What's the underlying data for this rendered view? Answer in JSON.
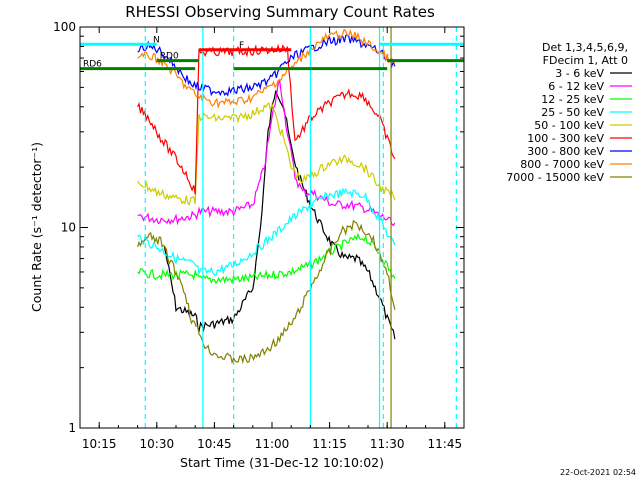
{
  "chart_data": {
    "type": "line",
    "title": "RHESSI Observing Summary Count Rates",
    "xlabel": "Start Time (31-Dec-12 10:10:02)",
    "ylabel": "Count Rate (s⁻¹ detector⁻¹)",
    "yscale": "log",
    "xlim": [
      "10:10",
      "11:50"
    ],
    "ylim": [
      1,
      100
    ],
    "x_ticks": [
      "10:15",
      "10:30",
      "10:45",
      "11:00",
      "11:15",
      "11:30",
      "11:45"
    ],
    "y_ticks": [
      "1",
      "10",
      "100"
    ],
    "legend_placement": "right",
    "legend_header": [
      "Det 1,3,4,5,6,9,",
      "FDecim 1, Att 0"
    ],
    "series": [
      {
        "name": "3 - 6 keV",
        "color": "#000000",
        "points": [
          [
            "10:32",
            8
          ],
          [
            "10:35",
            4
          ],
          [
            "10:40",
            3.6
          ],
          [
            "10:41",
            3.2
          ],
          [
            "10:45",
            3.3
          ],
          [
            "10:50",
            3.5
          ],
          [
            "10:55",
            5
          ],
          [
            "10:57",
            10
          ],
          [
            "10:59",
            30
          ],
          [
            "11:01",
            50
          ],
          [
            "11:03",
            40
          ],
          [
            "11:05",
            25
          ],
          [
            "11:07",
            18
          ],
          [
            "11:10",
            13
          ],
          [
            "11:13",
            10
          ],
          [
            "11:16",
            8
          ],
          [
            "11:19",
            7
          ],
          [
            "11:22",
            7
          ],
          [
            "11:25",
            6
          ],
          [
            "11:28",
            4.5
          ],
          [
            "11:30",
            3.5
          ],
          [
            "11:32",
            2.8
          ]
        ]
      },
      {
        "name": "6 - 12 keV",
        "color": "#ff00ff",
        "points": [
          [
            "10:25",
            11.5
          ],
          [
            "10:30",
            11
          ],
          [
            "10:35",
            11
          ],
          [
            "10:40",
            11.5
          ],
          [
            "10:41",
            12
          ],
          [
            "10:45",
            12
          ],
          [
            "10:50",
            12
          ],
          [
            "10:55",
            13
          ],
          [
            "10:58",
            20
          ],
          [
            "11:00",
            35
          ],
          [
            "11:02",
            55
          ],
          [
            "11:04",
            30
          ],
          [
            "11:06",
            18
          ],
          [
            "11:08",
            15
          ],
          [
            "11:10",
            15
          ],
          [
            "11:13",
            14
          ],
          [
            "11:16",
            13
          ],
          [
            "11:20",
            13
          ],
          [
            "11:24",
            12.5
          ],
          [
            "11:28",
            11.5
          ],
          [
            "11:30",
            11
          ],
          [
            "11:32",
            10
          ]
        ]
      },
      {
        "name": "12 - 25 keV",
        "color": "#00ff00",
        "points": [
          [
            "10:25",
            6
          ],
          [
            "10:30",
            5.8
          ],
          [
            "10:35",
            5.8
          ],
          [
            "10:40",
            5.8
          ],
          [
            "10:41",
            5.5
          ],
          [
            "10:45",
            5.5
          ],
          [
            "10:50",
            5.5
          ],
          [
            "10:55",
            5.6
          ],
          [
            "11:00",
            5.8
          ],
          [
            "11:05",
            6
          ],
          [
            "11:10",
            6.5
          ],
          [
            "11:15",
            7.5
          ],
          [
            "11:20",
            8.5
          ],
          [
            "11:24",
            9
          ],
          [
            "11:28",
            7.5
          ],
          [
            "11:32",
            5.5
          ]
        ]
      },
      {
        "name": "25 - 50 keV",
        "color": "#00ffff",
        "points": [
          [
            "10:25",
            9
          ],
          [
            "10:30",
            8
          ],
          [
            "10:35",
            7
          ],
          [
            "10:40",
            6.5
          ],
          [
            "10:41",
            6
          ],
          [
            "10:45",
            6
          ],
          [
            "10:50",
            6.5
          ],
          [
            "10:55",
            7.5
          ],
          [
            "11:00",
            9
          ],
          [
            "11:05",
            11
          ],
          [
            "11:10",
            13
          ],
          [
            "11:15",
            14.5
          ],
          [
            "11:20",
            15
          ],
          [
            "11:24",
            14.5
          ],
          [
            "11:28",
            11
          ],
          [
            "11:32",
            8
          ]
        ]
      },
      {
        "name": "50 - 100 keV",
        "color": "#cccc00",
        "points": [
          [
            "10:25",
            17
          ],
          [
            "10:30",
            15
          ],
          [
            "10:35",
            14
          ],
          [
            "10:40",
            13.5
          ],
          [
            "10:41",
            36
          ],
          [
            "10:45",
            35
          ],
          [
            "10:50",
            35
          ],
          [
            "10:55",
            37
          ],
          [
            "10:58",
            40
          ],
          [
            "11:00",
            40
          ],
          [
            "11:03",
            28
          ],
          [
            "11:05",
            20
          ],
          [
            "11:08",
            17
          ],
          [
            "11:10",
            18
          ],
          [
            "11:15",
            21
          ],
          [
            "11:20",
            22
          ],
          [
            "11:24",
            20
          ],
          [
            "11:28",
            16
          ],
          [
            "11:32",
            14
          ]
        ]
      },
      {
        "name": "100 - 300 keV",
        "color": "#ff0000",
        "points": [
          [
            "10:25",
            40
          ],
          [
            "10:28",
            35
          ],
          [
            "10:31",
            28
          ],
          [
            "10:35",
            22
          ],
          [
            "10:38",
            18
          ],
          [
            "10:40",
            15
          ],
          [
            "10:41",
            75
          ],
          [
            "10:45",
            75
          ],
          [
            "10:50",
            75
          ],
          [
            "10:55",
            76
          ],
          [
            "11:00",
            77
          ],
          [
            "11:04",
            78
          ],
          [
            "11:06",
            27
          ],
          [
            "11:10",
            35
          ],
          [
            "11:15",
            42
          ],
          [
            "11:20",
            47
          ],
          [
            "11:24",
            45
          ],
          [
            "11:28",
            35
          ],
          [
            "11:32",
            22
          ]
        ]
      },
      {
        "name": "300 - 800 keV",
        "color": "#0000ff",
        "points": [
          [
            "10:25",
            75
          ],
          [
            "10:27",
            80
          ],
          [
            "10:30",
            78
          ],
          [
            "10:33",
            70
          ],
          [
            "10:36",
            60
          ],
          [
            "10:39",
            52
          ],
          [
            "10:41",
            50
          ],
          [
            "10:45",
            48
          ],
          [
            "10:50",
            48
          ],
          [
            "10:55",
            50
          ],
          [
            "11:00",
            55
          ],
          [
            "11:03",
            65
          ],
          [
            "11:06",
            72
          ],
          [
            "11:10",
            78
          ],
          [
            "11:15",
            85
          ],
          [
            "11:20",
            87
          ],
          [
            "11:24",
            82
          ],
          [
            "11:28",
            75
          ],
          [
            "11:32",
            65
          ]
        ]
      },
      {
        "name": "800 - 7000 keV",
        "color": "#ff8000",
        "points": [
          [
            "10:25",
            70
          ],
          [
            "10:28",
            72
          ],
          [
            "10:31",
            68
          ],
          [
            "10:34",
            60
          ],
          [
            "10:37",
            52
          ],
          [
            "10:40",
            46
          ],
          [
            "10:43",
            43
          ],
          [
            "10:46",
            42
          ],
          [
            "10:50",
            42
          ],
          [
            "10:54",
            44
          ],
          [
            "10:58",
            48
          ],
          [
            "11:02",
            55
          ],
          [
            "11:06",
            65
          ],
          [
            "11:10",
            78
          ],
          [
            "11:14",
            88
          ],
          [
            "11:18",
            93
          ],
          [
            "11:22",
            90
          ],
          [
            "11:26",
            80
          ],
          [
            "11:30",
            70
          ],
          [
            "11:32",
            65
          ]
        ]
      },
      {
        "name": "7000 - 15000 keV",
        "color": "#808000",
        "points": [
          [
            "10:25",
            8
          ],
          [
            "10:28",
            9
          ],
          [
            "10:31",
            8.5
          ],
          [
            "10:34",
            6.5
          ],
          [
            "10:37",
            5
          ],
          [
            "10:39",
            3.5
          ],
          [
            "10:41",
            3
          ],
          [
            "10:43",
            2.5
          ],
          [
            "10:46",
            2.3
          ],
          [
            "10:50",
            2.2
          ],
          [
            "10:54",
            2.2
          ],
          [
            "10:58",
            2.4
          ],
          [
            "11:02",
            2.8
          ],
          [
            "11:06",
            3.5
          ],
          [
            "11:10",
            5
          ],
          [
            "11:14",
            7
          ],
          [
            "11:18",
            9.5
          ],
          [
            "11:22",
            10.5
          ],
          [
            "11:26",
            9
          ],
          [
            "11:30",
            6
          ],
          [
            "11:32",
            4
          ]
        ]
      }
    ],
    "vertical_lines": [
      {
        "x": "10:27",
        "color": "#00ffff",
        "style": "dashed"
      },
      {
        "x": "10:42",
        "color": "#00ffff",
        "style": "solid"
      },
      {
        "x": "10:50",
        "color": "#00ffff",
        "style": "dashed"
      },
      {
        "x": "11:10",
        "color": "#00ffff",
        "style": "solid"
      },
      {
        "x": "11:28",
        "color": "#00ffff",
        "style": "solid"
      },
      {
        "x": "11:29",
        "color": "#00ffff",
        "style": "dashed"
      },
      {
        "x": "11:31",
        "color": "#808000",
        "style": "solid"
      },
      {
        "x": "11:48",
        "color": "#00ffff",
        "style": "dashed"
      }
    ],
    "bands": [
      {
        "label": "N",
        "color": "#00ffff",
        "y": 82,
        "segments": [
          [
            "10:10",
            "10:30"
          ],
          [
            "11:28",
            "11:50"
          ]
        ]
      },
      {
        "label": "RD6",
        "color": "#008000",
        "y": 62,
        "segments": [
          [
            "10:10",
            "10:40"
          ],
          [
            "10:50",
            "11:30"
          ]
        ]
      },
      {
        "label": "RD0",
        "color": "#008000",
        "y": 68,
        "segments": [
          [
            "10:30",
            "10:41"
          ],
          [
            "11:30",
            "11:50"
          ]
        ]
      },
      {
        "label": "F",
        "color": "#ff0000",
        "y": 77,
        "segments": [
          [
            "10:41",
            "11:05"
          ]
        ]
      }
    ]
  },
  "timestamp": "22-Oct-2021 02:54"
}
